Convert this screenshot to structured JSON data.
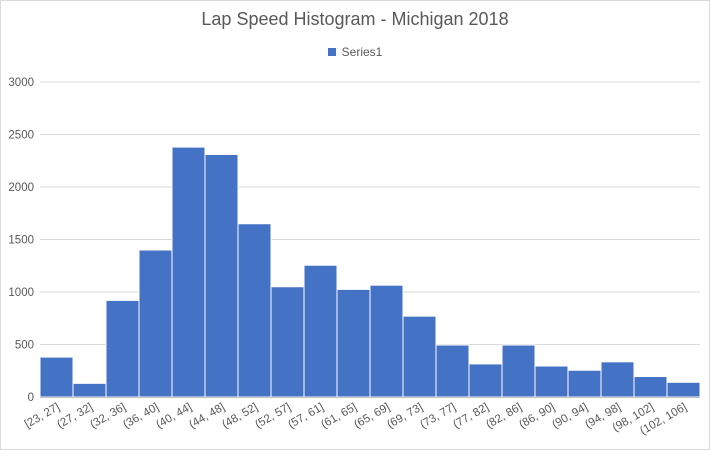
{
  "chart_data": {
    "type": "bar",
    "title": "Lap Speed Histogram - Michigan 2018",
    "legend": {
      "position": "top",
      "entries": [
        "Series1"
      ]
    },
    "series": [
      {
        "name": "Series1",
        "color": "#4472c4",
        "values": [
          380,
          130,
          920,
          1400,
          2380,
          2310,
          1650,
          1050,
          1255,
          1025,
          1065,
          770,
          495,
          315,
          495,
          295,
          255,
          335,
          195,
          140
        ]
      }
    ],
    "categories": [
      "[23, 27]",
      "(27, 32]",
      "(32, 36]",
      "(36, 40]",
      "(40, 44]",
      "(44, 48]",
      "(48, 52]",
      "(52, 57]",
      "(57, 61]",
      "(61, 65]",
      "(65, 69]",
      "(69, 73]",
      "(73, 77]",
      "(77, 82]",
      "(82, 86]",
      "(86, 90]",
      "(90, 94]",
      "(94, 98]",
      "(98, 102]",
      "(102, 106]"
    ],
    "yticks": [
      "0",
      "500",
      "1000",
      "1500",
      "2000",
      "2500",
      "3000"
    ],
    "ylim": [
      0,
      3000
    ],
    "grid": true,
    "xlabel": "",
    "ylabel": ""
  },
  "colors": {
    "bar": "#4472c4",
    "grid": "#d9d9d9",
    "axis": "#bfbfbf",
    "text": "#595959"
  }
}
